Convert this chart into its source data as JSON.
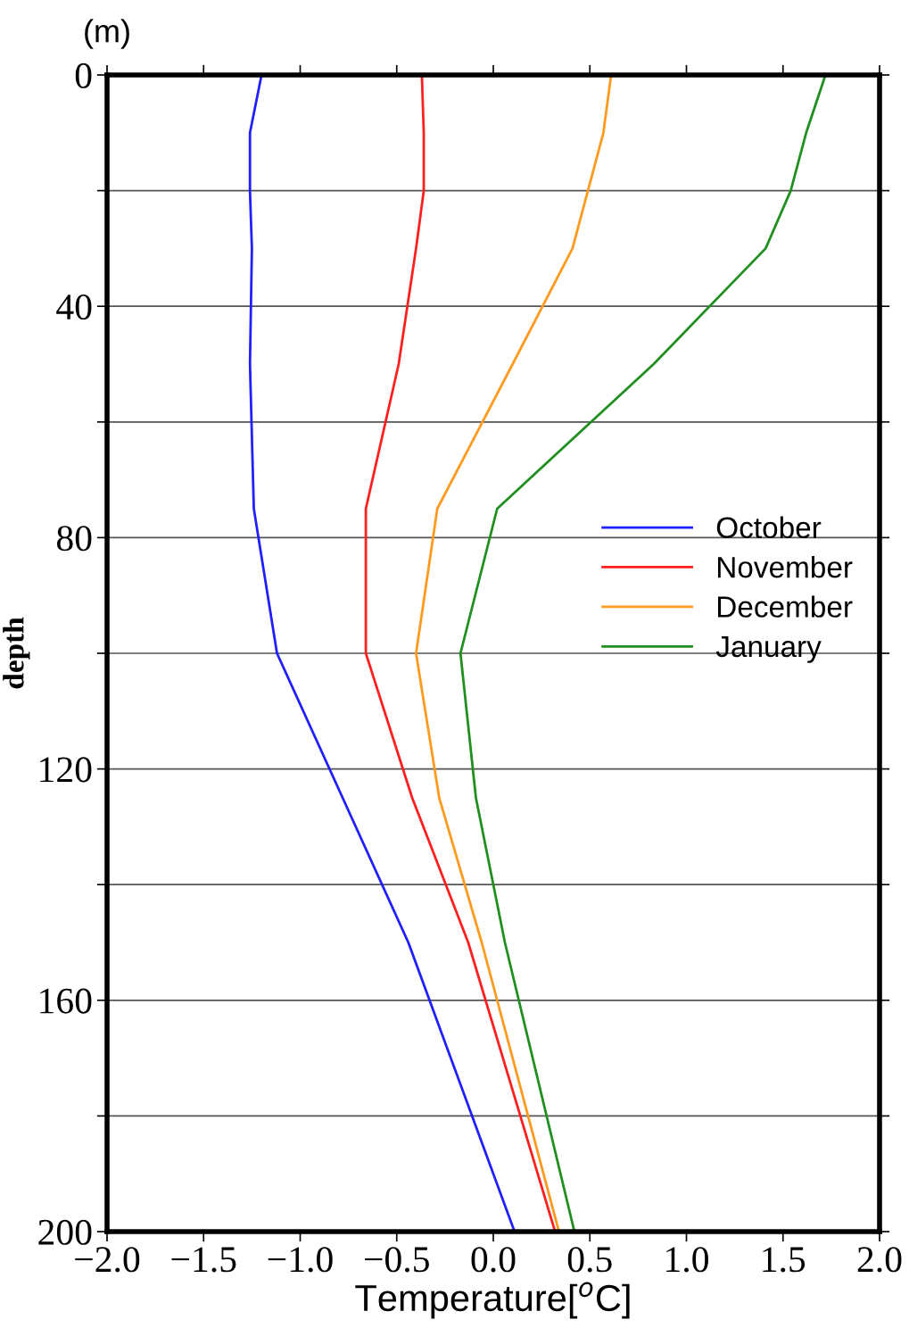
{
  "chart_data": {
    "type": "line",
    "xlabel": "Temperature[$^{o}$C]",
    "ylabel": "depth",
    "annotations": [
      "(m)"
    ],
    "xlim": [
      -2.0,
      2.0
    ],
    "xticks": [
      {
        "value": -2.0,
        "label": "−2.0"
      },
      {
        "value": -1.5,
        "label": "−1.5"
      },
      {
        "value": -1.0,
        "label": "−1.0"
      },
      {
        "value": -0.5,
        "label": "−0.5"
      },
      {
        "value": 0.0,
        "label": "0.0"
      },
      {
        "value": 0.5,
        "label": "0.5"
      },
      {
        "value": 1.0,
        "label": "1.0"
      },
      {
        "value": 1.5,
        "label": "1.5"
      },
      {
        "value": 2.0,
        "label": "2.0"
      }
    ],
    "ylim": [
      200,
      0
    ],
    "yticks": [
      0,
      {
        "value": 20,
        "label": null
      },
      40,
      {
        "value": 60,
        "label": null
      },
      80,
      {
        "value": 100,
        "label": null
      },
      120,
      {
        "value": 140,
        "label": null
      },
      160,
      {
        "value": 180,
        "label": null
      },
      200
    ],
    "grid": "y",
    "legend": "right",
    "marker": "none",
    "line_style": "solid",
    "series": [
      {
        "name": "October",
        "color": "#1f1fff",
        "x": [
          -1.2,
          -1.26,
          -1.26,
          -1.25,
          -1.26,
          -1.24,
          -1.12,
          -0.78,
          -0.44,
          0.11
        ],
        "values": [
          0,
          10,
          20,
          30,
          50,
          75,
          100,
          125,
          150,
          200
        ]
      },
      {
        "name": "November",
        "color": "#ff1f1f",
        "x": [
          -0.37,
          -0.36,
          -0.36,
          -0.4,
          -0.49,
          -0.66,
          -0.66,
          -0.42,
          -0.13,
          0.32
        ],
        "values": [
          0,
          10,
          20,
          30,
          50,
          75,
          100,
          125,
          150,
          200
        ]
      },
      {
        "name": "December",
        "color": "#ff9a1f",
        "x": [
          0.61,
          0.57,
          0.49,
          0.41,
          0.1,
          -0.29,
          -0.4,
          -0.28,
          -0.06,
          0.34
        ],
        "values": [
          0,
          10,
          20,
          30,
          50,
          75,
          100,
          125,
          150,
          200
        ]
      },
      {
        "name": "January",
        "color": "#1f8f1f",
        "x": [
          1.72,
          1.62,
          1.54,
          1.41,
          0.83,
          0.02,
          -0.17,
          -0.09,
          0.06,
          0.42
        ],
        "values": [
          0,
          10,
          20,
          30,
          50,
          75,
          100,
          125,
          150,
          200
        ]
      }
    ]
  }
}
